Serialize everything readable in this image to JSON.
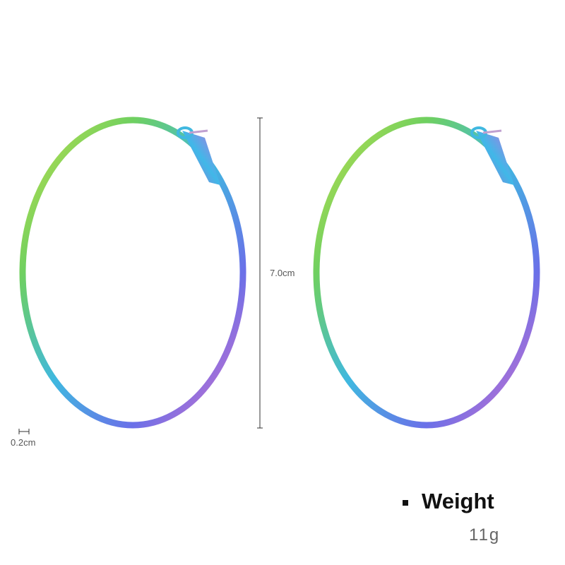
{
  "product_image": {
    "subject": "rainbow hoop earrings",
    "colors": [
      "#7fd34a",
      "#3fb4e0",
      "#5a6fe0",
      "#b070e0",
      "#e070c0"
    ]
  },
  "dimensions": {
    "height_label": "7.0cm",
    "thickness_label": "0.2cm"
  },
  "weight": {
    "title": "Weight",
    "value": "11g"
  }
}
